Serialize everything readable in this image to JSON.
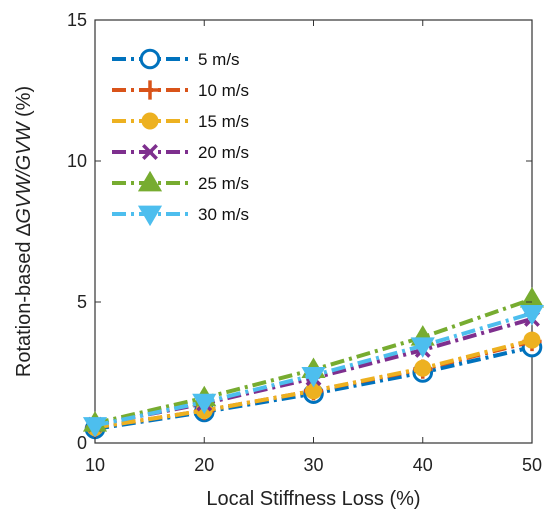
{
  "chart_data": {
    "type": "line",
    "xlabel": "Local Stiffness Loss (%)",
    "ylabel_parts": [
      "Rotation-based ",
      "∆",
      "GVW",
      "/",
      "GVW",
      " (%)"
    ],
    "x": [
      10,
      20,
      30,
      40,
      50
    ],
    "xlim": [
      10,
      50
    ],
    "ylim": [
      0,
      15
    ],
    "xticks": [
      "10",
      "20",
      "30",
      "40",
      "50"
    ],
    "yticks": [
      "0",
      "5",
      "10",
      "15"
    ],
    "grid": false,
    "legend_position": "top-left",
    "series": [
      {
        "name": "5 m/s",
        "values": [
          0.5,
          1.1,
          1.75,
          2.5,
          3.4
        ],
        "color": "#0072BD",
        "marker": "open-circle"
      },
      {
        "name": "10 m/s",
        "values": [
          0.55,
          1.15,
          1.85,
          2.62,
          3.6
        ],
        "color": "#D95319",
        "marker": "plus"
      },
      {
        "name": "15 m/s",
        "values": [
          0.55,
          1.15,
          1.85,
          2.65,
          3.65
        ],
        "color": "#EDB120",
        "marker": "filled-circle"
      },
      {
        "name": "20 m/s",
        "values": [
          0.65,
          1.4,
          2.3,
          3.3,
          4.4
        ],
        "color": "#7E2F8E",
        "marker": "x"
      },
      {
        "name": "25 m/s",
        "values": [
          0.7,
          1.6,
          2.6,
          3.75,
          5.1
        ],
        "color": "#77AC30",
        "marker": "triangle-up"
      },
      {
        "name": "30 m/s",
        "values": [
          0.62,
          1.45,
          2.4,
          3.45,
          4.6
        ],
        "color": "#4DBEEE",
        "marker": "triangle-down"
      }
    ]
  }
}
